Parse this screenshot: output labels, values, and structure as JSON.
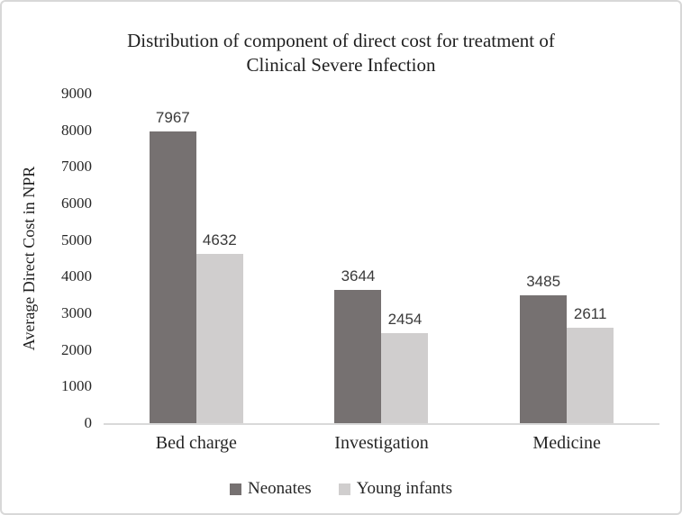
{
  "chart_data": {
    "type": "bar",
    "title": "Distribution of component of direct cost for treatment of Clinical Severe Infection",
    "title_lines": [
      "Distribution of component of direct cost for treatment of",
      "Clinical Severe Infection"
    ],
    "categories": [
      "Bed charge",
      "Investigation",
      "Medicine"
    ],
    "series": [
      {
        "name": "Neonates",
        "color": "#767171",
        "values": [
          7967,
          3644,
          3485
        ]
      },
      {
        "name": "Young infants",
        "color": "#d0cece",
        "values": [
          4632,
          2454,
          2611
        ]
      }
    ],
    "xlabel": "",
    "ylabel": "Average Direct Cost in NPR",
    "ylim": [
      0,
      9000
    ],
    "ytick_step": 1000,
    "yticks": [
      "9000",
      "8000",
      "7000",
      "6000",
      "5000",
      "4000",
      "3000",
      "2000",
      "1000",
      "0"
    ],
    "grid": false,
    "legend_position": "bottom",
    "axis_line_color": "#d9d9d9",
    "frame_border_color": "#d8d8d8"
  }
}
